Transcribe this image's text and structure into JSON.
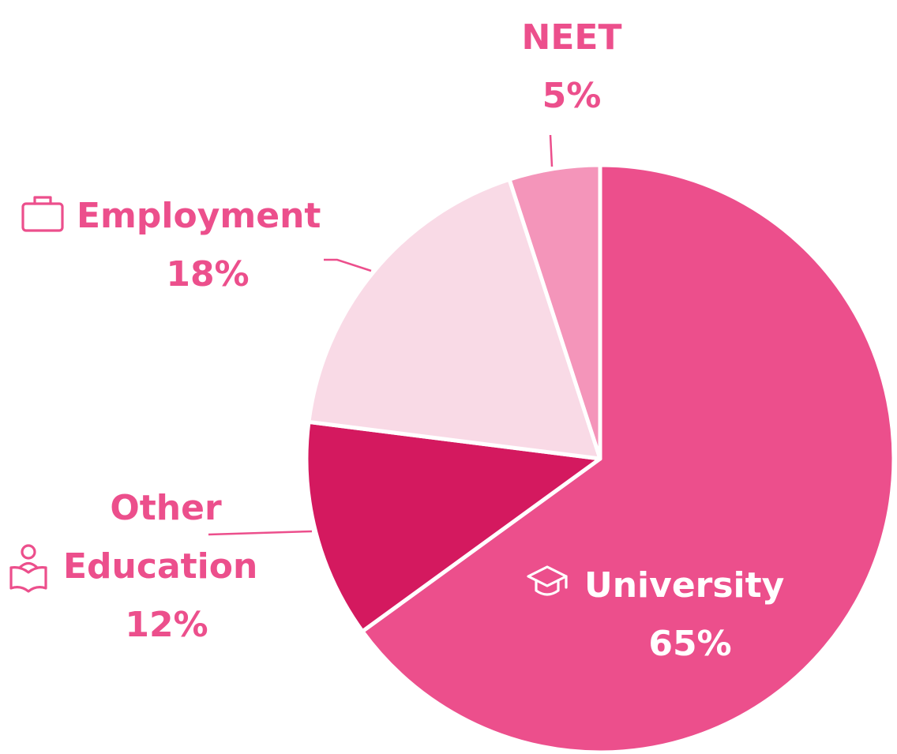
{
  "chart_data": {
    "type": "pie",
    "title": "",
    "start_angle_deg": 0,
    "direction": "clockwise",
    "slices": [
      {
        "name": "University",
        "value": 65,
        "label": "65%",
        "color": "#EC4F8C",
        "icon": "graduation-cap-icon"
      },
      {
        "name": "Other Education",
        "label_lines": [
          "Other",
          "Education"
        ],
        "value": 12,
        "label": "12%",
        "color": "#D4195F",
        "icon": "book-reader-icon"
      },
      {
        "name": "Employment",
        "value": 18,
        "label": "18%",
        "color": "#F9DAE6",
        "icon": "briefcase-icon"
      },
      {
        "name": "NEET",
        "value": 5,
        "label": "5%",
        "color": "#F495BA",
        "icon": ""
      }
    ],
    "colors": {
      "label_text": "#EC4F8C",
      "inside_label_text": "#FFFFFF",
      "leader_line": "#EC4F8C",
      "slice_border": "#FFFFFF"
    }
  }
}
